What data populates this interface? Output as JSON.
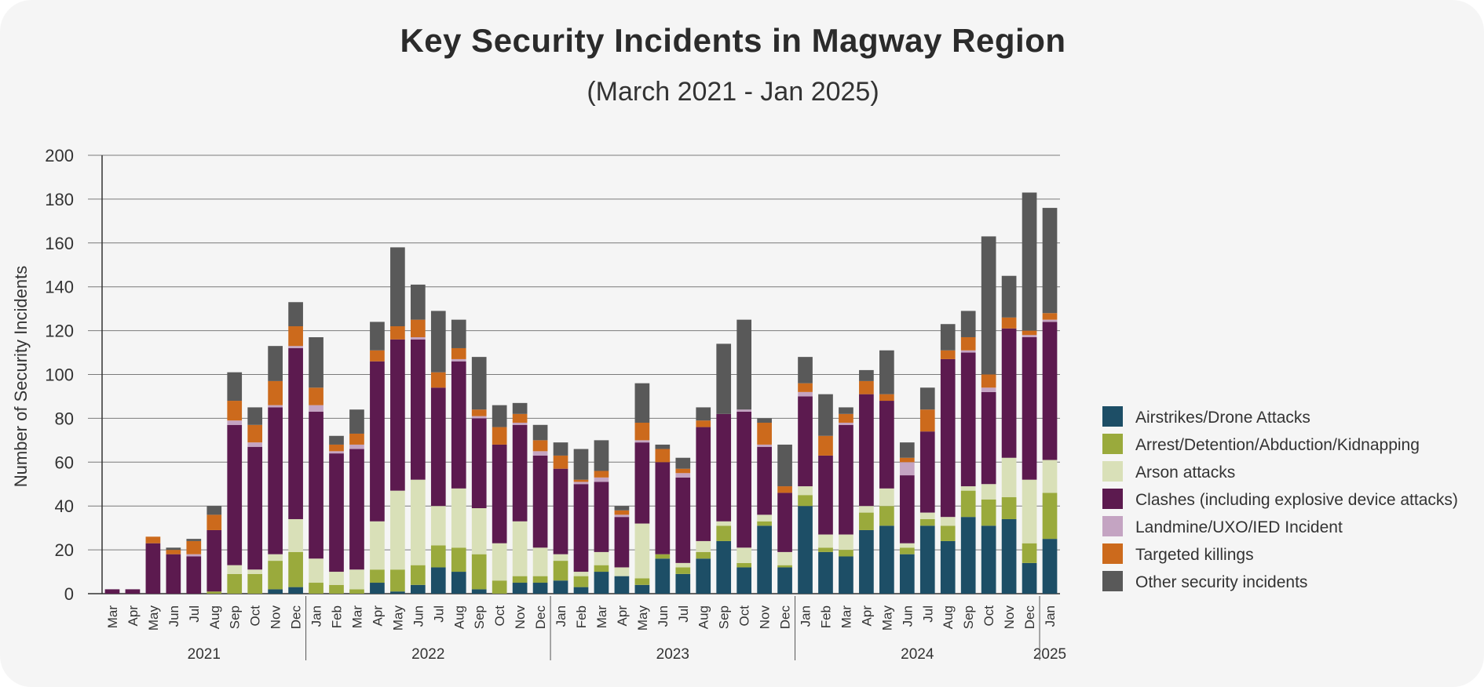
{
  "chart_data": {
    "type": "bar",
    "stacked": true,
    "title": "Key Security Incidents in Magway Region",
    "subtitle": "(March 2021 - Jan 2025)",
    "ylabel": "Number of Security Incidents",
    "xlabel": "",
    "ylim": [
      0,
      200
    ],
    "yticks": [
      0,
      20,
      40,
      60,
      80,
      100,
      120,
      140,
      160,
      180,
      200
    ],
    "grid": true,
    "legend_position": "right",
    "categories": [
      "Mar",
      "Apr",
      "May",
      "Jun",
      "Jul",
      "Aug",
      "Sep",
      "Oct",
      "Nov",
      "Dec",
      "Jan",
      "Feb",
      "Mar",
      "Apr",
      "May",
      "Jun",
      "Jul",
      "Aug",
      "Sep",
      "Oct",
      "Nov",
      "Dec",
      "Jan",
      "Feb",
      "Mar",
      "Apr",
      "May",
      "Jun",
      "Jul",
      "Aug",
      "Sep",
      "Oct",
      "Nov",
      "Dec",
      "Jan",
      "Feb",
      "Mar",
      "Apr",
      "May",
      "Jun",
      "Jul",
      "Aug",
      "Sep",
      "Oct",
      "Nov",
      "Dec",
      "Jan"
    ],
    "year_groups": [
      {
        "label": "2021",
        "count": 10
      },
      {
        "label": "2022",
        "count": 12
      },
      {
        "label": "2023",
        "count": 12
      },
      {
        "label": "2024",
        "count": 12
      },
      {
        "label": "2025",
        "count": 1
      }
    ],
    "series": [
      {
        "name": "Airstrikes/Drone Attacks",
        "color": "#1d4e66",
        "values": [
          0,
          0,
          0,
          0,
          0,
          0,
          0,
          0,
          2,
          3,
          0,
          0,
          0,
          5,
          1,
          4,
          12,
          10,
          2,
          0,
          5,
          5,
          6,
          3,
          10,
          8,
          4,
          16,
          9,
          16,
          24,
          12,
          31,
          12,
          40,
          19,
          17,
          29,
          31,
          18,
          31,
          24,
          35,
          31,
          34,
          14,
          25
        ]
      },
      {
        "name": "Arrest/Detention/Abduction/Kidnapping",
        "color": "#9aaa3c",
        "values": [
          0,
          0,
          0,
          0,
          0,
          1,
          9,
          9,
          13,
          16,
          5,
          4,
          2,
          6,
          10,
          9,
          10,
          11,
          16,
          6,
          3,
          3,
          9,
          5,
          3,
          0,
          3,
          2,
          3,
          3,
          7,
          2,
          2,
          1,
          5,
          2,
          3,
          8,
          9,
          3,
          3,
          7,
          12,
          12,
          10,
          9,
          21
        ]
      },
      {
        "name": "Arson attacks",
        "color": "#d9e0b8",
        "values": [
          0,
          0,
          0,
          0,
          0,
          0,
          4,
          2,
          3,
          15,
          11,
          6,
          9,
          22,
          36,
          39,
          18,
          27,
          21,
          17,
          25,
          13,
          3,
          2,
          6,
          4,
          25,
          0,
          2,
          5,
          2,
          7,
          3,
          6,
          4,
          6,
          7,
          3,
          8,
          2,
          3,
          4,
          2,
          7,
          18,
          29,
          15
        ]
      },
      {
        "name": "Clashes (including explosive device attacks)",
        "color": "#5c1a4f",
        "values": [
          2,
          2,
          23,
          18,
          17,
          28,
          64,
          56,
          67,
          78,
          67,
          54,
          55,
          73,
          69,
          64,
          54,
          58,
          41,
          45,
          44,
          42,
          39,
          40,
          32,
          23,
          37,
          42,
          39,
          52,
          49,
          62,
          31,
          27,
          41,
          36,
          50,
          51,
          40,
          31,
          37,
          72,
          61,
          42,
          59,
          65,
          63
        ]
      },
      {
        "name": "Landmine/UXO/IED Incident",
        "color": "#c4a4c2",
        "values": [
          0,
          0,
          0,
          0,
          1,
          0,
          2,
          2,
          1,
          1,
          3,
          1,
          2,
          0,
          0,
          1,
          0,
          1,
          1,
          0,
          1,
          2,
          0,
          1,
          2,
          1,
          1,
          0,
          2,
          0,
          0,
          1,
          1,
          0,
          2,
          0,
          1,
          0,
          0,
          6,
          0,
          0,
          1,
          2,
          0,
          1,
          1
        ]
      },
      {
        "name": "Targeted killings",
        "color": "#cc6a1c",
        "values": [
          0,
          0,
          3,
          2,
          6,
          7,
          9,
          8,
          11,
          9,
          8,
          3,
          5,
          5,
          6,
          8,
          7,
          5,
          3,
          8,
          4,
          5,
          6,
          1,
          3,
          2,
          8,
          6,
          2,
          3,
          0,
          0,
          10,
          3,
          4,
          9,
          4,
          6,
          3,
          2,
          10,
          4,
          6,
          6,
          5,
          2,
          3
        ]
      },
      {
        "name": "Other security incidents",
        "color": "#595959",
        "values": [
          0,
          0,
          0,
          1,
          1,
          4,
          13,
          8,
          16,
          11,
          23,
          4,
          11,
          13,
          36,
          16,
          28,
          13,
          24,
          10,
          5,
          7,
          6,
          14,
          14,
          2,
          18,
          2,
          5,
          6,
          32,
          41,
          2,
          19,
          12,
          19,
          3,
          5,
          20,
          7,
          10,
          12,
          12,
          63,
          19,
          63,
          48
        ]
      }
    ]
  }
}
